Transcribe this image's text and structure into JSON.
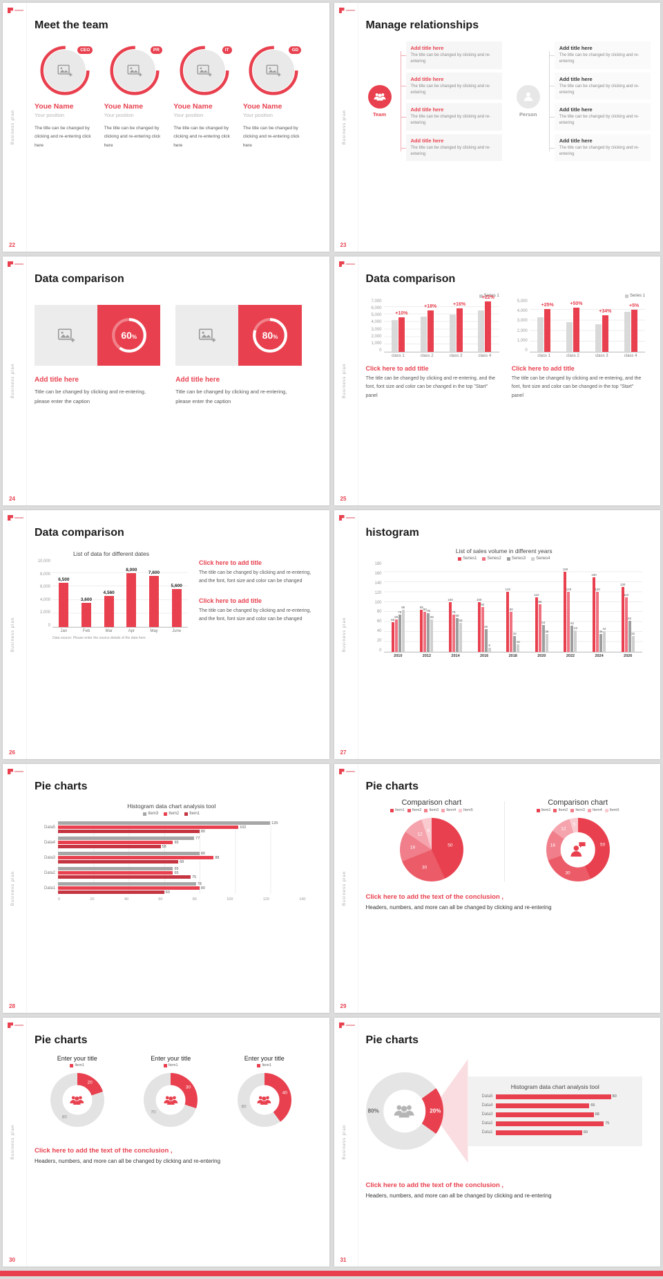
{
  "colors": {
    "accent": "#e8404e",
    "gray_bar": "#d9d9d9",
    "gray_dark": "#a6a6a6",
    "pink_beam": "#f9dde1"
  },
  "common": {
    "sidebar": "Business plan"
  },
  "slides": {
    "s22": {
      "page": "22",
      "title": "Meet the team",
      "members": [
        {
          "badge": "CEO",
          "name": "Youe Name",
          "position": "Your position",
          "desc": "The title can be changed by clicking and re-entering click here"
        },
        {
          "badge": "PR",
          "name": "Youe Name",
          "position": "Your position",
          "desc": "The title can be changed by clicking and re-entering click here"
        },
        {
          "badge": "IT",
          "name": "Youe Name",
          "position": "Your position",
          "desc": "The title can be changed by clicking and re-entering click here"
        },
        {
          "badge": "GD",
          "name": "Youe Name",
          "position": "Your position",
          "desc": "The title can be changed by clicking and re-entering click here"
        }
      ]
    },
    "s23": {
      "page": "23",
      "title": "Manage relationships",
      "team_label": "Team",
      "person_label": "Person",
      "left_items": [
        {
          "title": "Add title here",
          "desc": "The title can be changed by clicking and re-entering"
        },
        {
          "title": "Add title here",
          "desc": "The title can be changed by clicking and re-entering"
        },
        {
          "title": "Add title here",
          "desc": "The title can be changed by clicking and re-entering"
        },
        {
          "title": "Add title here",
          "desc": "The title can be changed by clicking and re-entering"
        }
      ],
      "right_items": [
        {
          "title": "Add title here",
          "desc": "The title can be changed by clicking and re-entering"
        },
        {
          "title": "Add title here",
          "desc": "The title can be changed by clicking and re-entering"
        },
        {
          "title": "Add title here",
          "desc": "The title can be changed by clicking and re-entering"
        },
        {
          "title": "Add title here",
          "desc": "The title can be changed by clicking and re-entering"
        }
      ]
    },
    "s24": {
      "page": "24",
      "title": "Data comparison",
      "cards": [
        {
          "title": "Add title here",
          "caption": "Title can be changed by clicking and re-entering, please enter the caption"
        },
        {
          "title": "Add title here",
          "caption": "Title can be changed by clicking and re-entering, please enter the caption"
        }
      ]
    },
    "s25": {
      "page": "25",
      "title": "Data comparison",
      "panels": [
        {
          "heading": "Click here to add title",
          "body": "The title can be changed by clicking and re-entering, and the font, font size and color can be changed in the top \"Start\" panel"
        },
        {
          "heading": "Click here to add title",
          "body": "The title can be changed by clicking and re-entering, and the font, font size and color can be changed in the top \"Start\" panel"
        }
      ]
    },
    "s26": {
      "page": "26",
      "title": "Data comparison",
      "blocks": [
        {
          "heading": "Click here to add title",
          "body": "The title can be changed by clicking and re-entering, and the font, font size and color can be changed"
        },
        {
          "heading": "Click here to add title",
          "body": "The title can be changed by clicking and re-entering, and the font, font size and color can be changed"
        }
      ]
    },
    "s27": {
      "page": "27",
      "title": "histogram"
    },
    "s28": {
      "page": "28",
      "title": "Pie charts"
    },
    "s29": {
      "page": "29",
      "title": "Pie charts",
      "conclusion_title": "Click here to add the text of the conclusion ,",
      "conclusion_body": "Headers, numbers, and more can all be changed by clicking and re-entering"
    },
    "s30": {
      "page": "30",
      "title": "Pie charts",
      "conclusion_title": "Click here to add the text of the conclusion ,",
      "conclusion_body": "Headers, numbers, and more can all be changed by clicking and re-entering"
    },
    "s31": {
      "page": "31",
      "title": "Pie charts",
      "conclusion_title": "Click here to add the text of the conclusion ,",
      "conclusion_body": "Headers, numbers, and more can all be changed by clicking and re-entering"
    }
  },
  "chart_data": [
    {
      "id": "g24a",
      "type": "gauge",
      "percent": 60,
      "label": "60",
      "suffix": "%"
    },
    {
      "id": "g24b",
      "type": "gauge",
      "percent": 80,
      "label": "80",
      "suffix": "%"
    },
    {
      "id": "c25a",
      "type": "column",
      "title": "",
      "legend": [
        "Series 1"
      ],
      "legend_colors": [
        "#c9c9c9"
      ],
      "categories": [
        "class 1",
        "class 2",
        "class 3",
        "class 4"
      ],
      "series": [
        {
          "name": "base",
          "color": "#d9d9d9",
          "values": [
            4200,
            4700,
            5000,
            5500
          ]
        },
        {
          "name": "Series 1",
          "color": "#e8404e",
          "values": [
            4600,
            5500,
            5800,
            6700
          ]
        }
      ],
      "annotations": [
        "+10%",
        "+18%",
        "+16%",
        "+22%"
      ],
      "ymax": 7000,
      "yticks": [
        "7,000",
        "6,000",
        "5,000",
        "4,000",
        "3,000",
        "2,000",
        "1,000",
        "0"
      ]
    },
    {
      "id": "c25b",
      "type": "column",
      "title": "",
      "legend": [
        "Series 1"
      ],
      "legend_colors": [
        "#c9c9c9"
      ],
      "categories": [
        "class 1",
        "class 2",
        "class 3",
        "class 4"
      ],
      "series": [
        {
          "name": "base",
          "color": "#d9d9d9",
          "values": [
            3300,
            2800,
            2600,
            3800
          ]
        },
        {
          "name": "Series 1",
          "color": "#e8404e",
          "values": [
            4100,
            4200,
            3500,
            4000
          ]
        }
      ],
      "annotations": [
        "+25%",
        "+50%",
        "+34%",
        "+5%"
      ],
      "ymax": 5000,
      "yticks": [
        "5,000",
        "4,000",
        "3,000",
        "2,000",
        "1,000",
        "0"
      ]
    },
    {
      "id": "c26",
      "type": "column",
      "title": "List of data for different dates",
      "categories": [
        "Jan",
        "Feb",
        "Mar",
        "Apr",
        "May",
        "June"
      ],
      "series": [
        {
          "name": "Data",
          "color": "#e8404e",
          "values": [
            6500,
            3600,
            4560,
            8000,
            7600,
            5600
          ]
        }
      ],
      "value_labels": [
        [
          "6,500",
          "3,600",
          "4,560",
          "8,000",
          "7,600",
          "5,600"
        ]
      ],
      "show_values": true,
      "val_bold": true,
      "barw": 14,
      "ymax": 10000,
      "yticks": [
        "10,000",
        "8,000",
        "6,000",
        "4,000",
        "2,000",
        "0"
      ],
      "source": "Data source: Please enter the source details of the data here"
    },
    {
      "id": "c27",
      "type": "column",
      "title": "List of sales volume in different years",
      "legend": [
        "Series1",
        "Series2",
        "Series3",
        "Series4"
      ],
      "legend_colors": [
        "#e8404e",
        "#ef7280",
        "#9e9e9e",
        "#cfcfcf"
      ],
      "categories": [
        "2010",
        "2012",
        "2014",
        "2016",
        "2018",
        "2020",
        "2022",
        "2024",
        "2026"
      ],
      "series": [
        {
          "name": "Series1",
          "color": "#e8404e",
          "values": [
            60,
            85,
            100,
            100,
            120,
            110,
            160,
            150,
            130
          ]
        },
        {
          "name": "Series2",
          "color": "#ef7280",
          "values": [
            65,
            80,
            75,
            90,
            80,
            96,
            120,
            120,
            110
          ]
        },
        {
          "name": "Series3",
          "color": "#9e9e9e",
          "values": [
            75,
            78,
            68,
            46,
            32,
            54,
            52,
            36,
            62
          ]
        },
        {
          "name": "Series4",
          "color": "#cfcfcf",
          "values": [
            85,
            65,
            58,
            9,
            15,
            36,
            43,
            42,
            32
          ]
        }
      ],
      "show_values": true,
      "dense": true,
      "x_bold": true,
      "ymax": 180,
      "yticks": [
        "180",
        "160",
        "140",
        "120",
        "100",
        "80",
        "60",
        "40",
        "20",
        "0"
      ]
    },
    {
      "id": "c28",
      "type": "hbar",
      "title": "Histogram data chart analysis tool",
      "legend": [
        "Item3",
        "Item2",
        "Item1"
      ],
      "legend_colors": [
        "#a6a6a6",
        "#e8404e",
        "#c43441"
      ],
      "categories": [
        "Data5",
        "Data4",
        "Data3",
        "Data2",
        "Data1"
      ],
      "rows": [
        [
          120,
          102,
          80
        ],
        [
          77,
          65,
          58
        ],
        [
          80,
          88,
          68
        ],
        [
          65,
          65,
          75
        ],
        [
          78,
          80,
          60
        ]
      ],
      "colors": [
        "#a6a6a6",
        "#e8404e",
        "#c43441"
      ],
      "xmax": 140,
      "xticks": [
        "0",
        "20",
        "40",
        "60",
        "80",
        "100",
        "120",
        "140"
      ],
      "labw": 30,
      "show_values": true
    },
    {
      "id": "c29a",
      "type": "pie",
      "title": "Comparison chart",
      "legend": [
        "Item1",
        "Item2",
        "Item3",
        "Item4",
        "Item5"
      ],
      "legend_colors": [
        "#e8404e",
        "#ec5b68",
        "#f07f8b",
        "#f5a4ad",
        "#f9cad0"
      ],
      "values": [
        50,
        30,
        18,
        12,
        6
      ],
      "labels": [
        "50",
        "30",
        "18",
        "12",
        "6"
      ],
      "colors": [
        "#e8404e",
        "#ec5b68",
        "#f07f8b",
        "#f5a4ad",
        "#f9cad0"
      ],
      "inner": 0,
      "label_r": 0.6,
      "label_colors": [
        "#fff",
        "#fff",
        "#fff",
        "#fff",
        "#fff"
      ]
    },
    {
      "id": "c29b",
      "type": "pie",
      "title": "Comparison chart",
      "legend": [
        "Item1",
        "Item2",
        "Item3",
        "Item4",
        "Item5"
      ],
      "legend_colors": [
        "#e8404e",
        "#ec5b68",
        "#f07f8b",
        "#f5a4ad",
        "#f9cad0"
      ],
      "values": [
        50,
        30,
        18,
        12,
        5
      ],
      "labels": [
        "50",
        "30",
        "18",
        "12",
        "5"
      ],
      "colors": [
        "#e8404e",
        "#ec5b68",
        "#f07f8b",
        "#f5a4ad",
        "#f9cad0"
      ],
      "inner": 0.55,
      "label_r": 0.8,
      "label_colors": [
        "#fff",
        "#fff",
        "#fff",
        "#fff",
        "#fff"
      ],
      "icon": "person-chat",
      "icon_color": "#e8404e"
    },
    {
      "id": "c30a",
      "type": "pie",
      "title": "Enter your title",
      "legend": [
        "Item1"
      ],
      "legend_colors": [
        "#e8404e"
      ],
      "values": [
        20,
        80
      ],
      "labels": [
        "20",
        "80"
      ],
      "colors": [
        "#e8404e",
        "#e3e3e3"
      ],
      "inner": 0.55,
      "label_r": 0.8,
      "label_colors": [
        "#fff",
        "#888"
      ],
      "icon": "people",
      "icon_color": "#e8404e"
    },
    {
      "id": "c30b",
      "type": "pie",
      "title": "Enter your title",
      "legend": [
        "Item1"
      ],
      "legend_colors": [
        "#e8404e"
      ],
      "values": [
        30,
        70
      ],
      "labels": [
        "30",
        "70"
      ],
      "colors": [
        "#e8404e",
        "#e3e3e3"
      ],
      "inner": 0.55,
      "label_r": 0.8,
      "label_colors": [
        "#fff",
        "#888"
      ],
      "icon": "people",
      "icon_color": "#e8404e"
    },
    {
      "id": "c30c",
      "type": "pie",
      "title": "Enter your title",
      "legend": [
        "Item1"
      ],
      "legend_colors": [
        "#e8404e"
      ],
      "values": [
        40,
        60
      ],
      "labels": [
        "40",
        "60"
      ],
      "colors": [
        "#e8404e",
        "#e3e3e3"
      ],
      "inner": 0.55,
      "label_r": 0.8,
      "label_colors": [
        "#fff",
        "#888"
      ],
      "icon": "people",
      "icon_color": "#e8404e"
    },
    {
      "id": "c31d",
      "type": "pie",
      "title": "",
      "values": [
        20,
        80
      ],
      "labels": [
        "20%",
        "80%"
      ],
      "colors": [
        "#e8404e",
        "#e5e5e5"
      ],
      "inner": 0.55,
      "label_r": 0.8,
      "start": 54,
      "label_colors": [
        "#fff",
        "#666"
      ],
      "icon": "people",
      "icon_color": "#b5b5b5"
    },
    {
      "id": "c31p",
      "type": "hbar",
      "title": "Histogram data chart analysis tool",
      "categories": [
        "Data5",
        "Data4",
        "Data3",
        "Data2",
        "Data1"
      ],
      "rows": [
        [
          80
        ],
        [
          65
        ],
        [
          68
        ],
        [
          75
        ],
        [
          60
        ]
      ],
      "colors": [
        "#e8404e"
      ],
      "xmax": 95,
      "labw": 26,
      "show_values": true,
      "panel": true
    }
  ]
}
